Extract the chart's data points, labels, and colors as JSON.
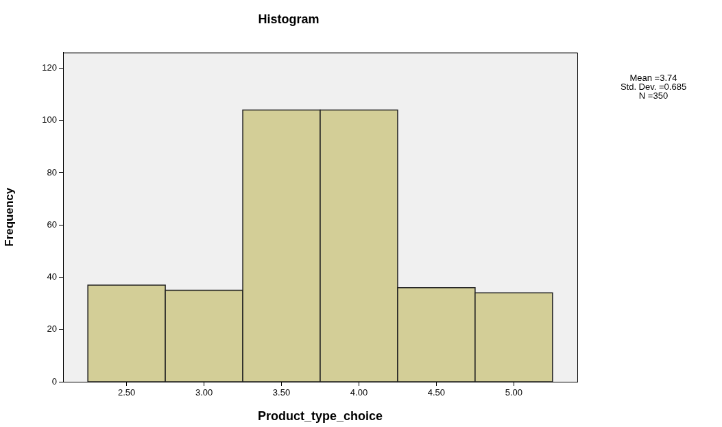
{
  "chart_data": {
    "type": "histogram",
    "title": "Histogram",
    "xlabel": "Product_type_choice",
    "ylabel": "Frequency",
    "bins": [
      2.25,
      2.75,
      3.25,
      3.75,
      4.25,
      4.75,
      5.25
    ],
    "values": [
      37,
      35,
      104,
      104,
      36,
      34
    ],
    "color": "#d3ce97",
    "xlim": [
      2.09,
      5.41
    ],
    "xticks": [
      {
        "value": 2.5,
        "label": "2.50"
      },
      {
        "value": 3,
        "label": "3.00"
      },
      {
        "value": 3.5,
        "label": "3.50"
      },
      {
        "value": 4,
        "label": "4.00"
      },
      {
        "value": 4.5,
        "label": "4.50"
      },
      {
        "value": 5,
        "label": "5.00"
      }
    ],
    "ylim": [
      0,
      126
    ],
    "yticks": [
      0,
      20,
      40,
      60,
      80,
      100,
      120
    ],
    "annotations": [
      "Mean =3.74",
      "Std. Dev. =0.685",
      "N =350"
    ]
  }
}
